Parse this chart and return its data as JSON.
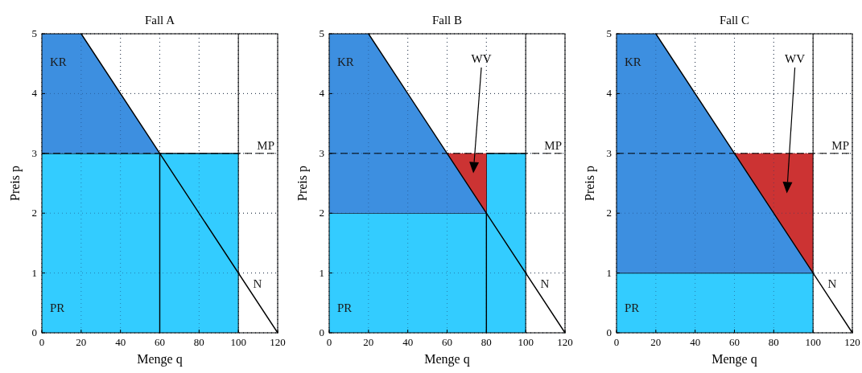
{
  "chart_data": [
    {
      "type": "area",
      "stacked": true,
      "title": "Fall A",
      "xlabel": "Menge q",
      "ylabel": "Preis p",
      "xlim": [
        0,
        120
      ],
      "ylim": [
        0,
        5
      ],
      "xticks": [
        0,
        20,
        40,
        60,
        80,
        100,
        120
      ],
      "yticks": [
        0,
        1,
        2,
        3,
        4,
        5
      ],
      "grid": true,
      "line_style": "solid",
      "x": [
        0,
        20,
        60,
        100
      ],
      "series": [
        {
          "name": "PR",
          "color": "#33ccff",
          "values": [
            3,
            3,
            3,
            3
          ]
        },
        {
          "name": "KR",
          "color": "#3d8fe0",
          "values": [
            2,
            2,
            0,
            null
          ]
        },
        {
          "type": "line",
          "color": "#000000",
          "x": [
            60,
            60
          ],
          "values": [
            0,
            3
          ]
        },
        {
          "type": "line",
          "name": "N",
          "color": "#000000",
          "x": [
            20,
            120
          ],
          "values": [
            5,
            0
          ]
        }
      ],
      "ref_lines": [
        {
          "axis": "y",
          "value": 3,
          "label": "MP",
          "line_style": "dashed"
        },
        {
          "axis": "x",
          "value": 100,
          "label": null,
          "line_style": "solid"
        }
      ]
    },
    {
      "type": "area",
      "stacked": true,
      "title": "Fall B",
      "xlabel": "Menge q",
      "ylabel": "Preis p",
      "xlim": [
        0,
        120
      ],
      "ylim": [
        0,
        5
      ],
      "xticks": [
        0,
        20,
        40,
        60,
        80,
        100,
        120
      ],
      "yticks": [
        0,
        1,
        2,
        3,
        4,
        5
      ],
      "grid": true,
      "line_style": "solid",
      "x": [
        0,
        20,
        60,
        80,
        80,
        100
      ],
      "series": [
        {
          "name": "PR",
          "color": "#33ccff",
          "values": [
            2,
            2,
            2,
            2,
            3,
            3
          ]
        },
        {
          "name": "KR",
          "color": "#3d8fe0",
          "values": [
            3,
            3,
            1,
            0,
            null,
            null
          ]
        },
        {
          "color": "#cc3333",
          "values": [
            null,
            null,
            0,
            1,
            null,
            null
          ]
        },
        {
          "type": "line",
          "color": "#000000",
          "x": [
            80,
            80
          ],
          "values": [
            0,
            2
          ]
        },
        {
          "type": "line",
          "name": "N",
          "color": "#000000",
          "x": [
            20,
            120
          ],
          "values": [
            5,
            0
          ]
        }
      ],
      "annotations": [
        "WV"
      ],
      "ref_lines": [
        {
          "axis": "y",
          "value": 3,
          "label": "MP",
          "line_style": "dashed"
        },
        {
          "axis": "x",
          "value": 100,
          "label": null,
          "line_style": "solid"
        }
      ]
    },
    {
      "type": "area",
      "stacked": true,
      "title": "Fall C",
      "xlabel": "Menge q",
      "ylabel": "Preis p",
      "xlim": [
        0,
        120
      ],
      "ylim": [
        0,
        5
      ],
      "xticks": [
        0,
        20,
        40,
        60,
        80,
        100,
        120
      ],
      "yticks": [
        0,
        1,
        2,
        3,
        4,
        5
      ],
      "grid": true,
      "line_style": "solid",
      "x": [
        0,
        20,
        60,
        100
      ],
      "series": [
        {
          "name": "PR",
          "color": "#33ccff",
          "values": [
            1,
            1,
            1,
            1
          ]
        },
        {
          "name": "KR",
          "color": "#3d8fe0",
          "values": [
            4,
            4,
            2,
            0
          ]
        },
        {
          "color": "#cc3333",
          "values": [
            null,
            null,
            0,
            2
          ]
        },
        {
          "type": "line",
          "name": "N",
          "color": "#000000",
          "x": [
            20,
            120
          ],
          "values": [
            5,
            0
          ]
        }
      ],
      "annotations": [
        "WV"
      ],
      "ref_lines": [
        {
          "axis": "y",
          "value": 3,
          "label": "MP",
          "line_style": "dashed"
        },
        {
          "axis": "x",
          "value": 100,
          "label": null,
          "line_style": "solid"
        }
      ]
    }
  ]
}
